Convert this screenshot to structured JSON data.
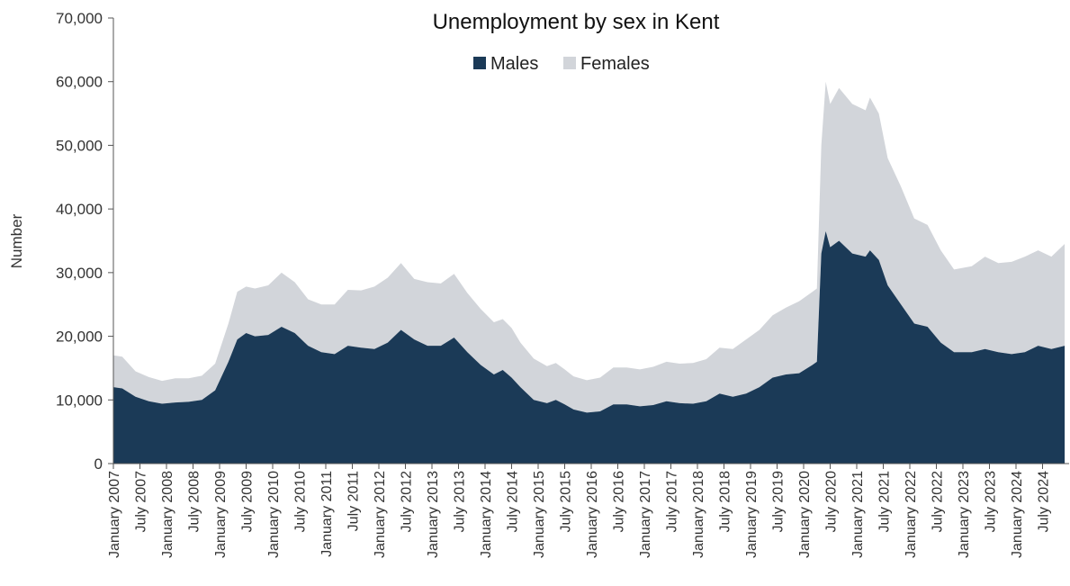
{
  "chart_data": {
    "type": "area",
    "stacked": true,
    "title": "Unemployment by sex in Kent",
    "xlabel": "",
    "ylabel": "Number",
    "ylim": [
      0,
      70000
    ],
    "yticks": [
      0,
      10000,
      20000,
      30000,
      40000,
      50000,
      60000,
      70000
    ],
    "ytick_labels": [
      "0",
      "10,000",
      "20,000",
      "30,000",
      "40,000",
      "50,000",
      "60,000",
      "70,000"
    ],
    "x_range": [
      "January 2007",
      "January 2025"
    ],
    "xtick_labels": [
      "January 2007",
      "July 2007",
      "January 2008",
      "July 2008",
      "January 2009",
      "July 2009",
      "January 2010",
      "July 2010",
      "January 2011",
      "July 2011",
      "January 2012",
      "July 2012",
      "January 2013",
      "July 2013",
      "January 2014",
      "July 2014",
      "January 2015",
      "July 2015",
      "January 2016",
      "July 2016",
      "January 2017",
      "July 2017",
      "January 2018",
      "July 2018",
      "January 2019",
      "July 2019",
      "January 2020",
      "July 2020",
      "January 2021",
      "July 2021",
      "January 2022",
      "July 2022",
      "January 2023",
      "July 2023",
      "January 2024",
      "July 2024"
    ],
    "legend_position": "top-center",
    "grid": false,
    "colors": {
      "Males": "#1b3a57",
      "Females": "#d2d5da",
      "axis": "#555555"
    },
    "series": [
      {
        "name": "Males",
        "points": [
          [
            "2007-01",
            12000
          ],
          [
            "2007-03",
            11800
          ],
          [
            "2007-06",
            10500
          ],
          [
            "2007-09",
            9800
          ],
          [
            "2007-12",
            9400
          ],
          [
            "2008-03",
            9600
          ],
          [
            "2008-06",
            9700
          ],
          [
            "2008-09",
            10000
          ],
          [
            "2008-12",
            11500
          ],
          [
            "2009-03",
            16000
          ],
          [
            "2009-05",
            19500
          ],
          [
            "2009-07",
            20500
          ],
          [
            "2009-09",
            20000
          ],
          [
            "2009-12",
            20200
          ],
          [
            "2010-03",
            21500
          ],
          [
            "2010-06",
            20500
          ],
          [
            "2010-09",
            18500
          ],
          [
            "2010-12",
            17500
          ],
          [
            "2011-03",
            17200
          ],
          [
            "2011-06",
            18500
          ],
          [
            "2011-09",
            18200
          ],
          [
            "2011-12",
            18000
          ],
          [
            "2012-03",
            19000
          ],
          [
            "2012-06",
            21000
          ],
          [
            "2012-09",
            19500
          ],
          [
            "2012-12",
            18500
          ],
          [
            "2013-03",
            18500
          ],
          [
            "2013-06",
            19800
          ],
          [
            "2013-09",
            17500
          ],
          [
            "2013-12",
            15500
          ],
          [
            "2014-03",
            14000
          ],
          [
            "2014-05",
            14700
          ],
          [
            "2014-07",
            13500
          ],
          [
            "2014-09",
            12000
          ],
          [
            "2014-12",
            10000
          ],
          [
            "2015-03",
            9500
          ],
          [
            "2015-05",
            10000
          ],
          [
            "2015-07",
            9300
          ],
          [
            "2015-09",
            8500
          ],
          [
            "2015-12",
            8000
          ],
          [
            "2016-03",
            8200
          ],
          [
            "2016-06",
            9300
          ],
          [
            "2016-09",
            9300
          ],
          [
            "2016-12",
            9000
          ],
          [
            "2017-03",
            9200
          ],
          [
            "2017-06",
            9800
          ],
          [
            "2017-09",
            9500
          ],
          [
            "2017-12",
            9400
          ],
          [
            "2018-03",
            9800
          ],
          [
            "2018-06",
            11000
          ],
          [
            "2018-09",
            10500
          ],
          [
            "2018-12",
            11000
          ],
          [
            "2019-03",
            12000
          ],
          [
            "2019-06",
            13500
          ],
          [
            "2019-09",
            14000
          ],
          [
            "2019-12",
            14200
          ],
          [
            "2020-03",
            15500
          ],
          [
            "2020-04",
            16000
          ],
          [
            "2020-05",
            33000
          ],
          [
            "2020-06",
            36500
          ],
          [
            "2020-07",
            34000
          ],
          [
            "2020-09",
            35000
          ],
          [
            "2020-12",
            33000
          ],
          [
            "2021-03",
            32500
          ],
          [
            "2021-04",
            33500
          ],
          [
            "2021-06",
            32000
          ],
          [
            "2021-08",
            28000
          ],
          [
            "2021-11",
            25000
          ],
          [
            "2022-02",
            22000
          ],
          [
            "2022-05",
            21500
          ],
          [
            "2022-08",
            19000
          ],
          [
            "2022-11",
            17500
          ],
          [
            "2023-03",
            17500
          ],
          [
            "2023-06",
            18000
          ],
          [
            "2023-09",
            17500
          ],
          [
            "2023-12",
            17200
          ],
          [
            "2024-03",
            17500
          ],
          [
            "2024-06",
            18500
          ],
          [
            "2024-09",
            18000
          ],
          [
            "2024-12",
            18500
          ]
        ]
      },
      {
        "name": "Females",
        "points": [
          [
            "2007-01",
            5000
          ],
          [
            "2007-03",
            5000
          ],
          [
            "2007-06",
            4000
          ],
          [
            "2007-09",
            3800
          ],
          [
            "2007-12",
            3600
          ],
          [
            "2008-03",
            3800
          ],
          [
            "2008-06",
            3700
          ],
          [
            "2008-09",
            3800
          ],
          [
            "2008-12",
            4200
          ],
          [
            "2009-03",
            6000
          ],
          [
            "2009-05",
            7500
          ],
          [
            "2009-07",
            7300
          ],
          [
            "2009-09",
            7500
          ],
          [
            "2009-12",
            7800
          ],
          [
            "2010-03",
            8500
          ],
          [
            "2010-06",
            8000
          ],
          [
            "2010-09",
            7300
          ],
          [
            "2010-12",
            7500
          ],
          [
            "2011-03",
            7800
          ],
          [
            "2011-06",
            8800
          ],
          [
            "2011-09",
            9000
          ],
          [
            "2011-12",
            9800
          ],
          [
            "2012-03",
            10200
          ],
          [
            "2012-06",
            10500
          ],
          [
            "2012-09",
            9500
          ],
          [
            "2012-12",
            10000
          ],
          [
            "2013-03",
            9800
          ],
          [
            "2013-06",
            10000
          ],
          [
            "2013-09",
            9300
          ],
          [
            "2013-12",
            8800
          ],
          [
            "2014-03",
            8200
          ],
          [
            "2014-05",
            8000
          ],
          [
            "2014-07",
            7800
          ],
          [
            "2014-09",
            7000
          ],
          [
            "2014-12",
            6500
          ],
          [
            "2015-03",
            5800
          ],
          [
            "2015-05",
            5800
          ],
          [
            "2015-07",
            5500
          ],
          [
            "2015-09",
            5200
          ],
          [
            "2015-12",
            5100
          ],
          [
            "2016-03",
            5300
          ],
          [
            "2016-06",
            5800
          ],
          [
            "2016-09",
            5800
          ],
          [
            "2016-12",
            5800
          ],
          [
            "2017-03",
            6000
          ],
          [
            "2017-06",
            6200
          ],
          [
            "2017-09",
            6200
          ],
          [
            "2017-12",
            6400
          ],
          [
            "2018-03",
            6600
          ],
          [
            "2018-06",
            7200
          ],
          [
            "2018-09",
            7500
          ],
          [
            "2018-12",
            8500
          ],
          [
            "2019-03",
            9000
          ],
          [
            "2019-06",
            9800
          ],
          [
            "2019-09",
            10500
          ],
          [
            "2019-12",
            11300
          ],
          [
            "2020-03",
            11500
          ],
          [
            "2020-04",
            11500
          ],
          [
            "2020-05",
            17000
          ],
          [
            "2020-06",
            23500
          ],
          [
            "2020-07",
            22500
          ],
          [
            "2020-09",
            24000
          ],
          [
            "2020-12",
            23500
          ],
          [
            "2021-03",
            23000
          ],
          [
            "2021-04",
            24000
          ],
          [
            "2021-06",
            23000
          ],
          [
            "2021-08",
            20000
          ],
          [
            "2021-11",
            18500
          ],
          [
            "2022-02",
            16500
          ],
          [
            "2022-05",
            16000
          ],
          [
            "2022-08",
            14500
          ],
          [
            "2022-11",
            13000
          ],
          [
            "2023-03",
            13500
          ],
          [
            "2023-06",
            14500
          ],
          [
            "2023-09",
            14000
          ],
          [
            "2023-12",
            14500
          ],
          [
            "2024-03",
            15000
          ],
          [
            "2024-06",
            15000
          ],
          [
            "2024-09",
            14500
          ],
          [
            "2024-12",
            16000
          ]
        ]
      }
    ]
  }
}
